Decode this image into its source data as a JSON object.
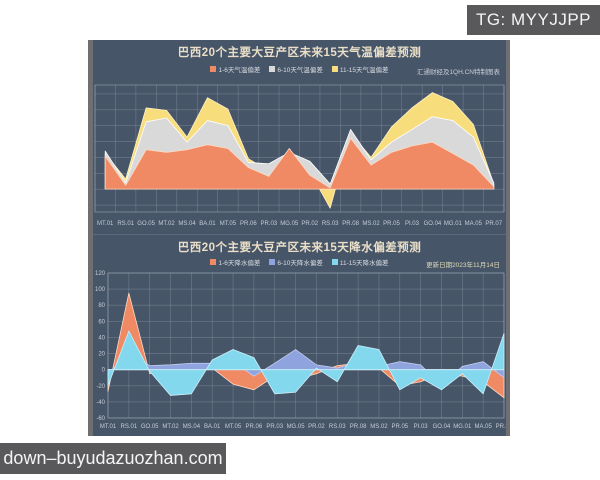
{
  "badges": {
    "telegram": "TG: MYYJJPP",
    "watermark": "down–buyudazuozhan.com"
  },
  "panel": {
    "background": "#475568",
    "edge_color": "#6f6f71"
  },
  "chart_data": [
    {
      "type": "area",
      "title": "巴西20个主要大豆产区未来15天气温偏差预测",
      "note": "汇通财经及1QH.CN特制图表",
      "legend_position": "top",
      "grid": true,
      "boundary_gap": true,
      "show_y_labels": false,
      "ylim": [
        -1.8,
        8.2
      ],
      "y_step": 1.25,
      "categories": [
        "MT.01",
        "RS.01",
        "GO.05",
        "MT.02",
        "MS.04",
        "BA.01",
        "MT.05",
        "PR.06",
        "PR.03",
        "MG.05",
        "PR.02",
        "RS.03",
        "PR.08",
        "MS.02",
        "PR.05",
        "PI.03",
        "GO.04",
        "MG.01",
        "MA.05",
        "PR.07"
      ],
      "series": [
        {
          "name": "1-6天气温偏差",
          "color": "#ef8a64",
          "edge": "#ffd9c2",
          "values": [
            2.6,
            0.3,
            3.1,
            2.9,
            3.1,
            3.5,
            3.2,
            1.7,
            1.0,
            3.2,
            1.1,
            0.1,
            4.0,
            1.9,
            2.9,
            3.4,
            3.7,
            2.8,
            1.9,
            0.2
          ]
        },
        {
          "name": "6-10天气温偏差",
          "color": "#d9d9d9",
          "edge": "#ffffff",
          "values": [
            3.0,
            0.5,
            5.3,
            5.6,
            3.7,
            5.4,
            5.0,
            2.1,
            2.0,
            2.9,
            2.2,
            0.4,
            4.7,
            2.3,
            3.7,
            4.7,
            5.7,
            5.4,
            4.1,
            0.5
          ]
        },
        {
          "name": "11-15天气温偏差",
          "color": "#f8dd7d",
          "edge": "#fff3c4",
          "values": [
            2.8,
            0.8,
            6.4,
            6.2,
            4.1,
            7.2,
            6.3,
            2.4,
            1.4,
            2.3,
            1.4,
            -1.5,
            4.4,
            2.5,
            4.9,
            6.4,
            7.6,
            6.9,
            5.1,
            0.4
          ]
        }
      ],
      "draw_order": [
        2,
        1,
        0
      ]
    },
    {
      "type": "area",
      "title": "巴西20个主要大豆产区未来15天降水偏差预测",
      "note": "更新日期2023年11月14日",
      "legend_position": "top",
      "grid": true,
      "boundary_gap": false,
      "show_y_labels": true,
      "ylim": [
        -60,
        120
      ],
      "y_step": 20,
      "categories": [
        "MT.01",
        "RS.01",
        "GO.05",
        "MT.02",
        "MS.04",
        "BA.01",
        "MT.05",
        "PR.06",
        "PR.03",
        "MG.05",
        "PR.02",
        "RS.03",
        "PR.08",
        "MS.02",
        "PR.05",
        "PI.03",
        "GO.04",
        "MG.01",
        "MA.05",
        "PR.07"
      ],
      "series": [
        {
          "name": "1-6天降水偏差",
          "color": "#ef8a64",
          "edge": "#ffd9c2",
          "values": [
            -27,
            95,
            -5,
            2,
            3,
            2,
            -18,
            -25,
            -8,
            -12,
            -5,
            5,
            8,
            2,
            -20,
            -15,
            -5,
            -8,
            -15,
            -35
          ]
        },
        {
          "name": "6-10天降水偏差",
          "color": "#8fa4de",
          "edge": "#c3cdf0",
          "values": [
            -5,
            20,
            5,
            6,
            8,
            8,
            10,
            -8,
            8,
            25,
            6,
            2,
            10,
            4,
            10,
            6,
            -20,
            4,
            10,
            -10
          ]
        },
        {
          "name": "11-15天降水偏差",
          "color": "#84d8ee",
          "edge": "#c9eff9",
          "values": [
            -20,
            48,
            -2,
            -32,
            -30,
            12,
            25,
            15,
            -30,
            -28,
            2,
            -15,
            30,
            25,
            -25,
            -10,
            -25,
            -5,
            -30,
            45
          ]
        }
      ],
      "draw_order": [
        0,
        1,
        2
      ]
    }
  ],
  "style": {
    "grid_line_color": "rgba(200,212,228,0.30)",
    "plot_border_color": "rgba(200,212,228,0.45)",
    "tick_label_color": "#c5ccd8"
  }
}
